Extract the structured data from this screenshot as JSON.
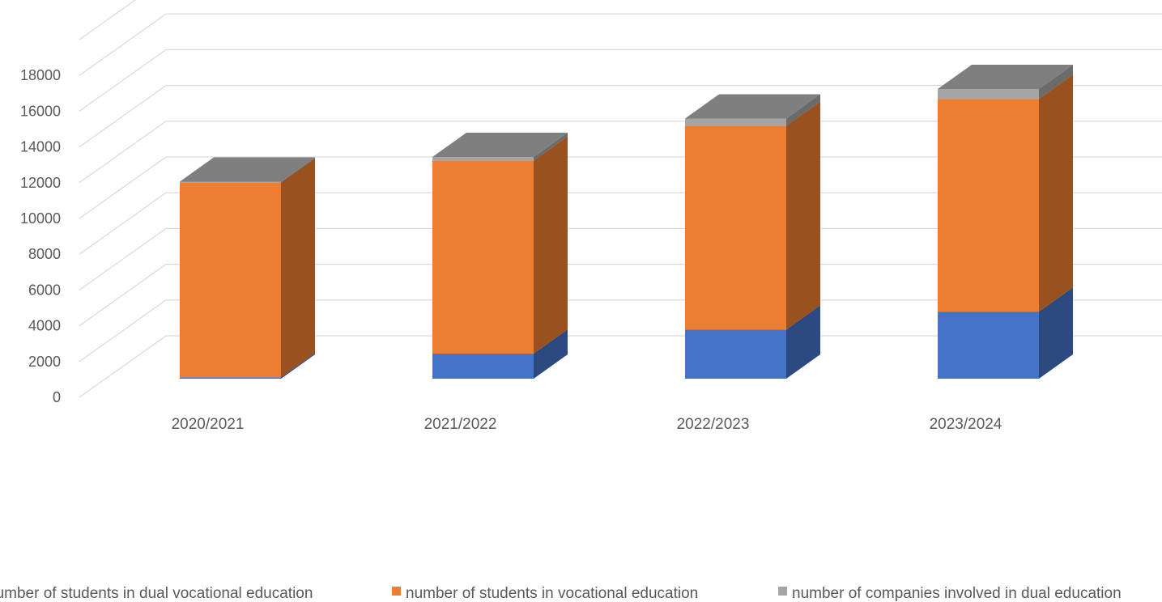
{
  "chart_data": {
    "type": "bar",
    "subtype": "stacked-3d-column",
    "title": "",
    "xlabel": "",
    "ylabel": "",
    "ylim": [
      0,
      20000
    ],
    "yticks": [
      "0",
      "2000",
      "4000",
      "6000",
      "8000",
      "10000",
      "12000",
      "14000",
      "16000",
      "18000"
    ],
    "grid": true,
    "legend_position": "bottom",
    "categories": [
      "2020/2021",
      "2021/2022",
      "2022/2023",
      "2023/2024"
    ],
    "series": [
      {
        "name": "number of students in dual vocational education",
        "values": [
          80,
          1400,
          2750,
          3750
        ],
        "color": "#4472C4"
      },
      {
        "name": "number of students in vocational education",
        "values": [
          10900,
          10800,
          11400,
          11900
        ],
        "color": "#ED7D31"
      },
      {
        "name": "number of companies involved in dual education",
        "values": [
          40,
          200,
          400,
          550
        ],
        "color": "#A5A5A5"
      }
    ]
  }
}
